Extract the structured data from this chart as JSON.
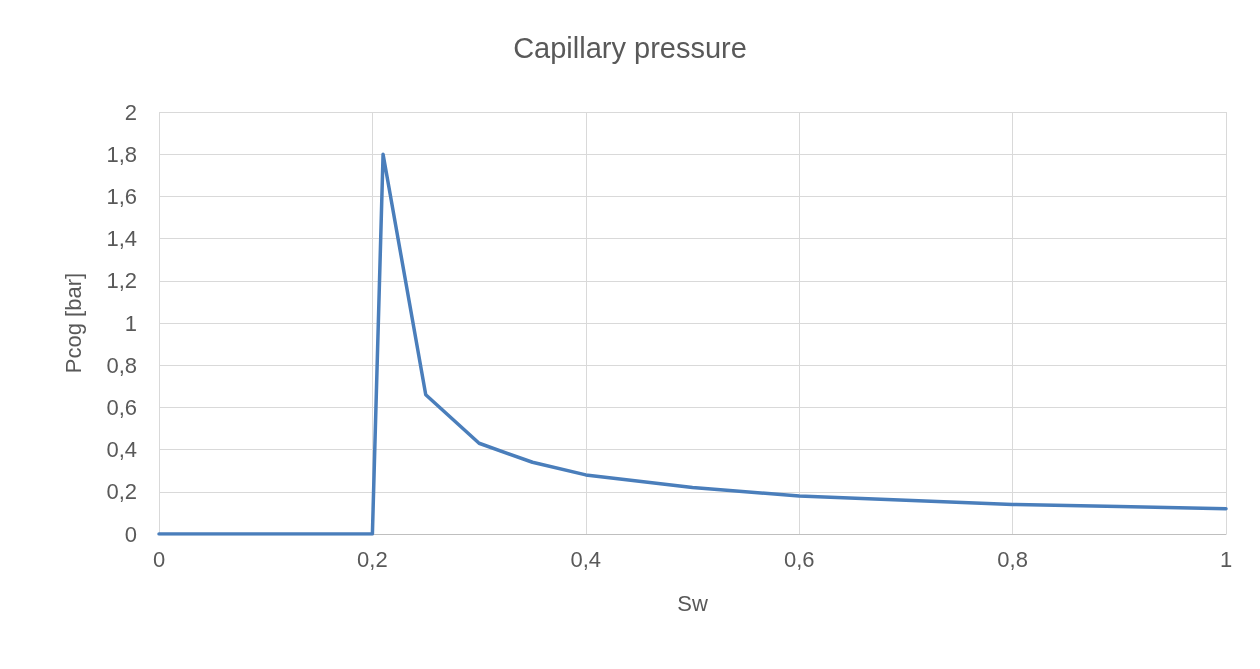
{
  "chart_data": {
    "type": "line",
    "title": "Capillary pressure",
    "xlabel": "Sw",
    "ylabel": "Pcog [bar]",
    "x": [
      0,
      0.2,
      0.21,
      0.25,
      0.3,
      0.35,
      0.4,
      0.5,
      0.6,
      0.7,
      0.8,
      0.9,
      1
    ],
    "series": [
      {
        "color": "#4a7ebb",
        "values": [
          0,
          0,
          1.8,
          0.66,
          0.43,
          0.34,
          0.28,
          0.22,
          0.18,
          0.16,
          0.14,
          0.13,
          0.12
        ]
      }
    ],
    "xlim": [
      0,
      1
    ],
    "xticks": [
      0,
      {
        "value": 0.2,
        "label": "0,2"
      },
      {
        "value": 0.4,
        "label": "0,4"
      },
      {
        "value": 0.6,
        "label": "0,6"
      },
      {
        "value": 0.8,
        "label": "0,8"
      },
      1
    ],
    "ylim": [
      0,
      2
    ],
    "yticks": [
      0,
      {
        "value": 0.2,
        "label": "0,2"
      },
      {
        "value": 0.4,
        "label": "0,4"
      },
      {
        "value": 0.6,
        "label": "0,6"
      },
      {
        "value": 0.8,
        "label": "0,8"
      },
      1,
      {
        "value": 1.2,
        "label": "1,2"
      },
      {
        "value": 1.4,
        "label": "1,4"
      },
      {
        "value": 1.6,
        "label": "1,6"
      },
      {
        "value": 1.8,
        "label": "1,8"
      },
      2
    ],
    "grid": true,
    "marker": "none",
    "line_style": "solid"
  }
}
